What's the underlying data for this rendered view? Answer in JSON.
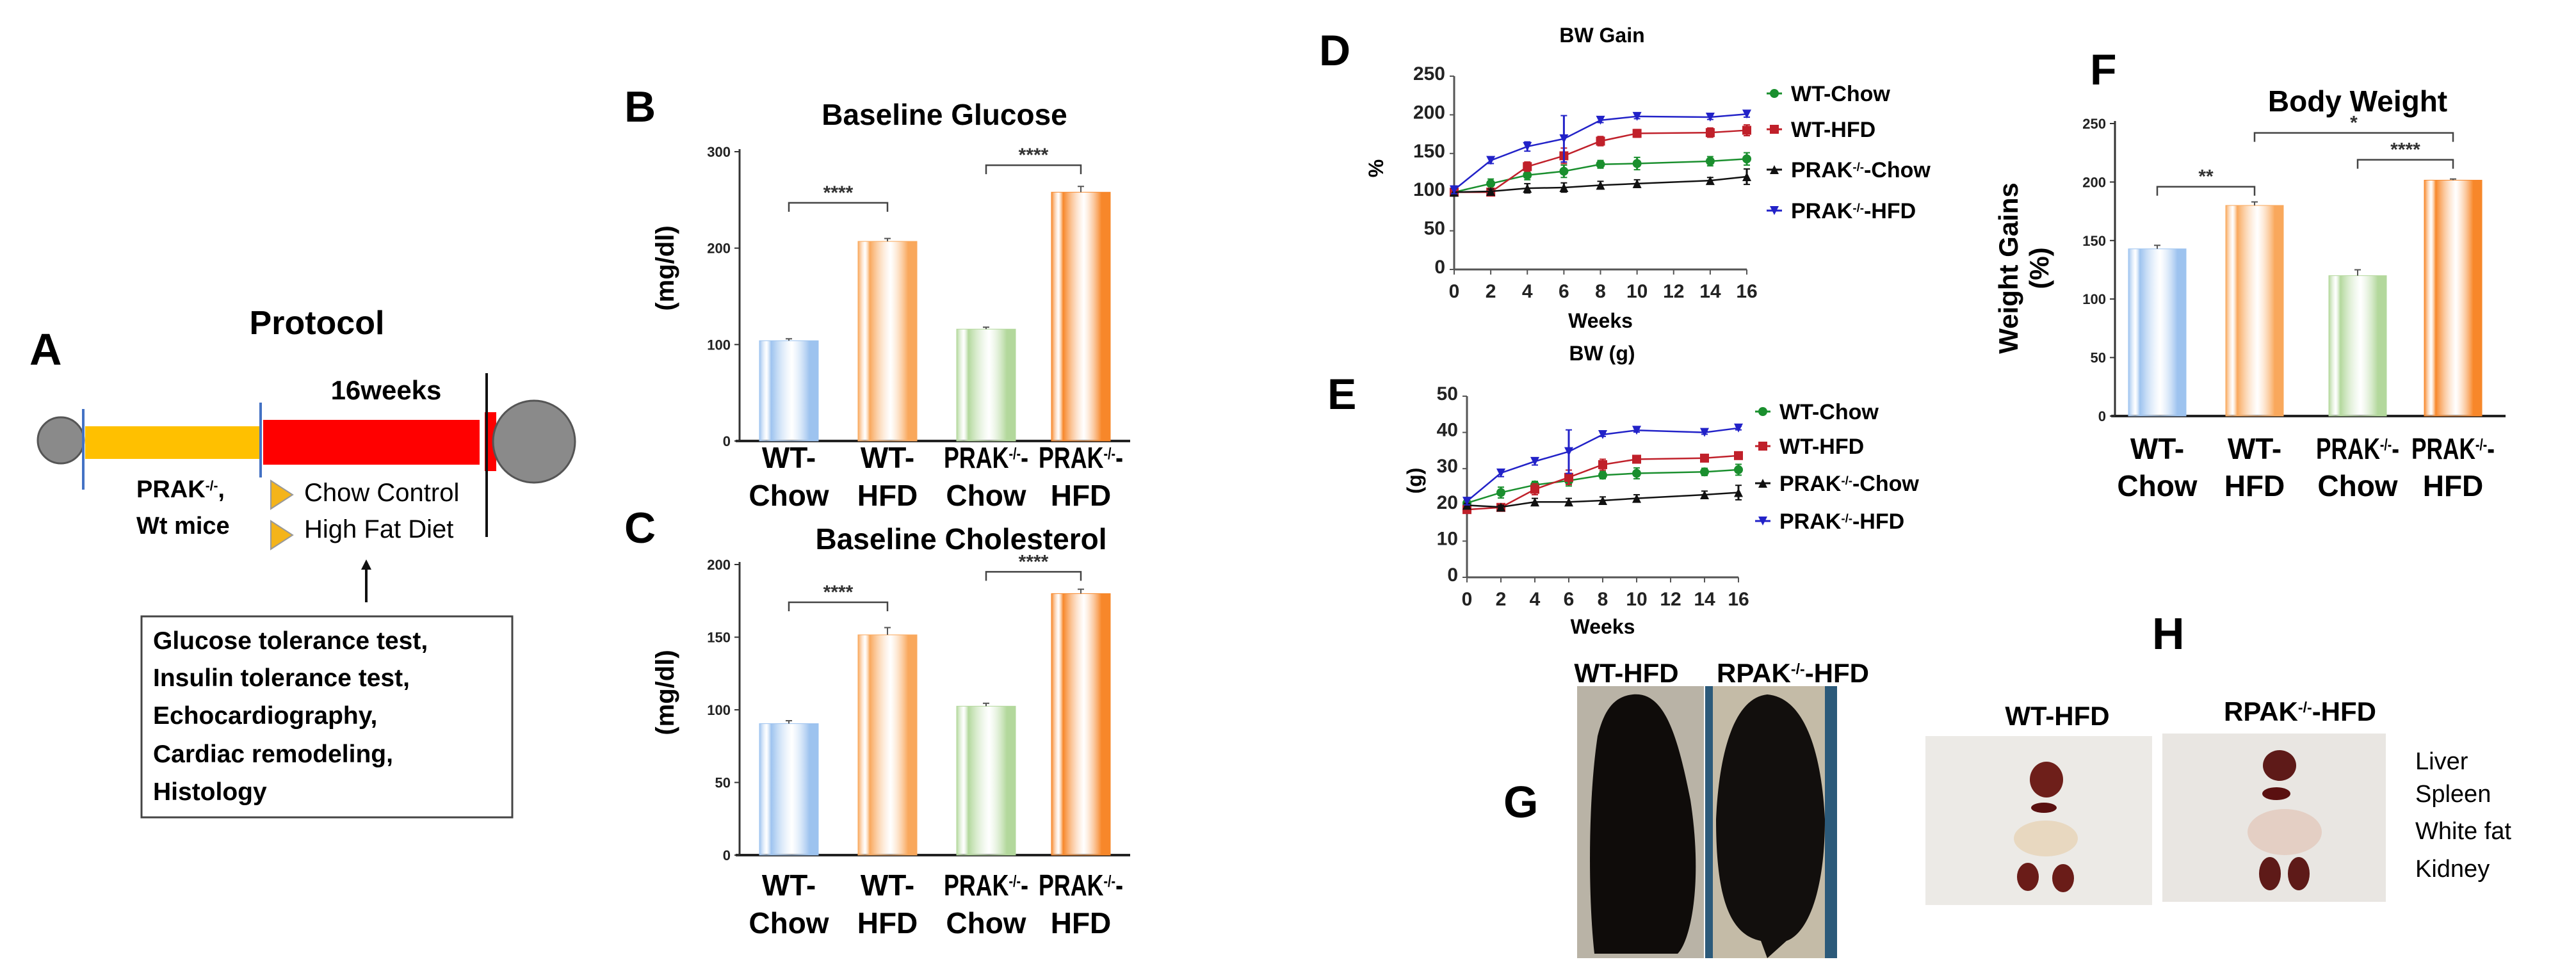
{
  "panel_labels": {
    "A": "A",
    "B": "B",
    "C": "C",
    "D": "D",
    "E": "E",
    "F": "F",
    "G": "G",
    "H": "H"
  },
  "protocol": {
    "title": "Protocol",
    "duration": "16weeks",
    "mice_line1": "PRAK-/-,",
    "mice_line2": "Wt mice",
    "groups": [
      "Chow Control",
      "High Fat Diet"
    ],
    "measurements": [
      "Glucose tolerance test,",
      "Insulin tolerance test,",
      "Echocardiography,",
      "Cardiac remodeling,",
      "Histology"
    ],
    "colors": {
      "acclimation": "#ffc000",
      "treatment": "#ff0000",
      "marker": "#4472c4",
      "group_arrow": "#f4b41a"
    }
  },
  "chart_data": [
    {
      "id": "B",
      "type": "bar",
      "title": "Baseline Glucose",
      "ylabel": "(mg/dl)",
      "xlabel": "",
      "categories": [
        "WT-Chow",
        "WT-HFD",
        "PRAK-/--Chow",
        "PRAK-/--HFD"
      ],
      "category_lines": [
        [
          "WT-",
          "Chow"
        ],
        [
          "WT-",
          "HFD"
        ],
        [
          "PRAK-/--",
          "Chow"
        ],
        [
          "PRAK-/--",
          "HFD"
        ]
      ],
      "values": [
        104,
        207,
        116,
        258
      ],
      "errors": [
        2,
        3,
        2,
        6
      ],
      "ylim": [
        0,
        300
      ],
      "yticks": [
        0,
        100,
        200,
        300
      ],
      "colors": [
        "#9dc3ef",
        "#f9a85c",
        "#b3d89c",
        "#f7872a"
      ],
      "significance": [
        {
          "from": 0,
          "to": 1,
          "y": 247,
          "label": "****"
        },
        {
          "from": 2,
          "to": 3,
          "y": 286,
          "label": "****"
        }
      ]
    },
    {
      "id": "C",
      "type": "bar",
      "title": "Baseline Cholesterol",
      "ylabel": "(mg/dl)",
      "xlabel": "",
      "categories": [
        "WT-Chow",
        "WT-HFD",
        "PRAK-/--Chow",
        "PRAK-/--HFD"
      ],
      "category_lines": [
        [
          "WT-",
          "Chow"
        ],
        [
          "WT-",
          "HFD"
        ],
        [
          "PRAK-/--",
          "Chow"
        ],
        [
          "PRAK-/--",
          "HFD"
        ]
      ],
      "values": [
        90.5,
        151.6,
        102.5,
        180
      ],
      "errors": [
        2,
        5,
        2,
        3
      ],
      "ylim": [
        0,
        200
      ],
      "yticks": [
        0,
        50,
        100,
        150,
        200
      ],
      "colors": [
        "#9dc3ef",
        "#f9a85c",
        "#b3d89c",
        "#f7872a"
      ],
      "significance": [
        {
          "from": 0,
          "to": 1,
          "y": 174,
          "label": "****"
        },
        {
          "from": 2,
          "to": 3,
          "y": 195,
          "label": "****"
        }
      ]
    },
    {
      "id": "D",
      "type": "line",
      "title": "BW Gain",
      "ylabel": "%",
      "xlabel": "Weeks",
      "x": [
        0,
        2,
        4,
        6,
        8,
        10,
        14,
        16
      ],
      "xticks": [
        0,
        2,
        4,
        6,
        8,
        10,
        12,
        14,
        16
      ],
      "ylim": [
        0,
        250
      ],
      "yticks": [
        0,
        50,
        100,
        150,
        200,
        250
      ],
      "xlim": [
        0,
        16
      ],
      "legend_position": "right",
      "series": [
        {
          "name": "WT-Chow",
          "color": "#1a8f2e",
          "marker": "circle",
          "values": [
            100,
            111,
            122,
            127,
            136,
            137,
            140,
            143
          ],
          "errors": [
            4,
            6,
            6,
            8,
            5,
            8,
            6,
            8
          ]
        },
        {
          "name": "WT-HFD",
          "color": "#c0202a",
          "marker": "square",
          "values": [
            100,
            100,
            133,
            147,
            166,
            176,
            177,
            180
          ],
          "errors": [
            4,
            4,
            6,
            10,
            6,
            5,
            6,
            7
          ]
        },
        {
          "name": "PRAK-/--Chow",
          "color": "#111111",
          "marker": "triangle-up",
          "values": [
            100,
            101,
            105,
            106,
            109,
            111,
            115,
            120
          ],
          "errors": [
            5,
            3,
            6,
            6,
            5,
            5,
            4,
            10
          ]
        },
        {
          "name": "PRAK-/--HFD",
          "color": "#2222c8",
          "marker": "triangle-down",
          "values": [
            103,
            141,
            159,
            169,
            193,
            198,
            197,
            201
          ],
          "errors": [
            5,
            4,
            6,
            30,
            3,
            3,
            3,
            4
          ]
        }
      ]
    },
    {
      "id": "E",
      "type": "line",
      "title": "BW (g)",
      "ylabel": "(g)",
      "xlabel": "Weeks",
      "x": [
        0,
        2,
        4,
        6,
        8,
        10,
        14,
        16
      ],
      "xticks": [
        0,
        2,
        4,
        6,
        8,
        10,
        12,
        14,
        16
      ],
      "ylim": [
        0,
        50
      ],
      "yticks": [
        0,
        10,
        20,
        30,
        40,
        50
      ],
      "xlim": [
        0,
        16
      ],
      "legend_position": "right",
      "series": [
        {
          "name": "WT-Chow",
          "color": "#1a8f2e",
          "marker": "circle",
          "values": [
            20.5,
            23.4,
            25.5,
            26.7,
            28.2,
            28.7,
            29.1,
            29.7
          ],
          "errors": [
            1,
            1.5,
            1,
            1.5,
            1,
            1.5,
            1,
            1.5
          ]
        },
        {
          "name": "WT-HFD",
          "color": "#c0202a",
          "marker": "square",
          "values": [
            18.7,
            19.3,
            24.3,
            27.6,
            31.1,
            32.6,
            32.9,
            33.6
          ],
          "errors": [
            1,
            1,
            1.5,
            2,
            1.5,
            1,
            1,
            1
          ]
        },
        {
          "name": "PRAK-/--Chow",
          "color": "#111111",
          "marker": "triangle-up",
          "values": [
            19.9,
            19.4,
            20.8,
            20.8,
            21.2,
            21.8,
            22.8,
            23.4
          ],
          "errors": [
            0.5,
            0.5,
            1,
            1,
            1,
            1,
            1,
            2
          ]
        },
        {
          "name": "PRAK-/--HFD",
          "color": "#2222c8",
          "marker": "triangle-down",
          "values": [
            21,
            28.8,
            32,
            34.7,
            39.4,
            40.6,
            40,
            41.2
          ],
          "errors": [
            1,
            1,
            1,
            6,
            0.5,
            0.5,
            0.5,
            0.5
          ]
        }
      ]
    },
    {
      "id": "F",
      "type": "bar",
      "title": "Body Weight",
      "ylabel": [
        "Weight Gains",
        "(%)"
      ],
      "xlabel": "",
      "categories": [
        "WT-Chow",
        "WT-HFD",
        "PRAK-/--Chow",
        "PRAK-/--HFD"
      ],
      "category_lines": [
        [
          "WT-",
          "Chow"
        ],
        [
          "WT-",
          "HFD"
        ],
        [
          "PRAK-/--",
          "Chow"
        ],
        [
          "PRAK-/--",
          "HFD"
        ]
      ],
      "values": [
        142.9,
        180,
        120,
        201.6
      ],
      "errors": [
        3,
        3,
        5,
        1
      ],
      "ylim": [
        0,
        250
      ],
      "yticks": [
        0,
        50,
        100,
        150,
        200,
        250
      ],
      "colors": [
        "#9dc3ef",
        "#f9a85c",
        "#b3d89c",
        "#f7872a"
      ],
      "significance": [
        {
          "from": 0,
          "to": 1,
          "y": 196,
          "label": "**"
        },
        {
          "from": 1,
          "to": 3,
          "y": 242,
          "label": "*"
        },
        {
          "from": 2,
          "to": 3,
          "y": 219,
          "label": "****"
        }
      ]
    }
  ],
  "photos": {
    "mice": {
      "labels": [
        "WT-HFD",
        "RPAK-/--HFD"
      ]
    },
    "organs": {
      "labels": [
        "WT-HFD",
        "RPAK-/--HFD"
      ],
      "organ_names": [
        "Liver",
        "Spleen",
        "White fat",
        "Kidney"
      ]
    }
  }
}
